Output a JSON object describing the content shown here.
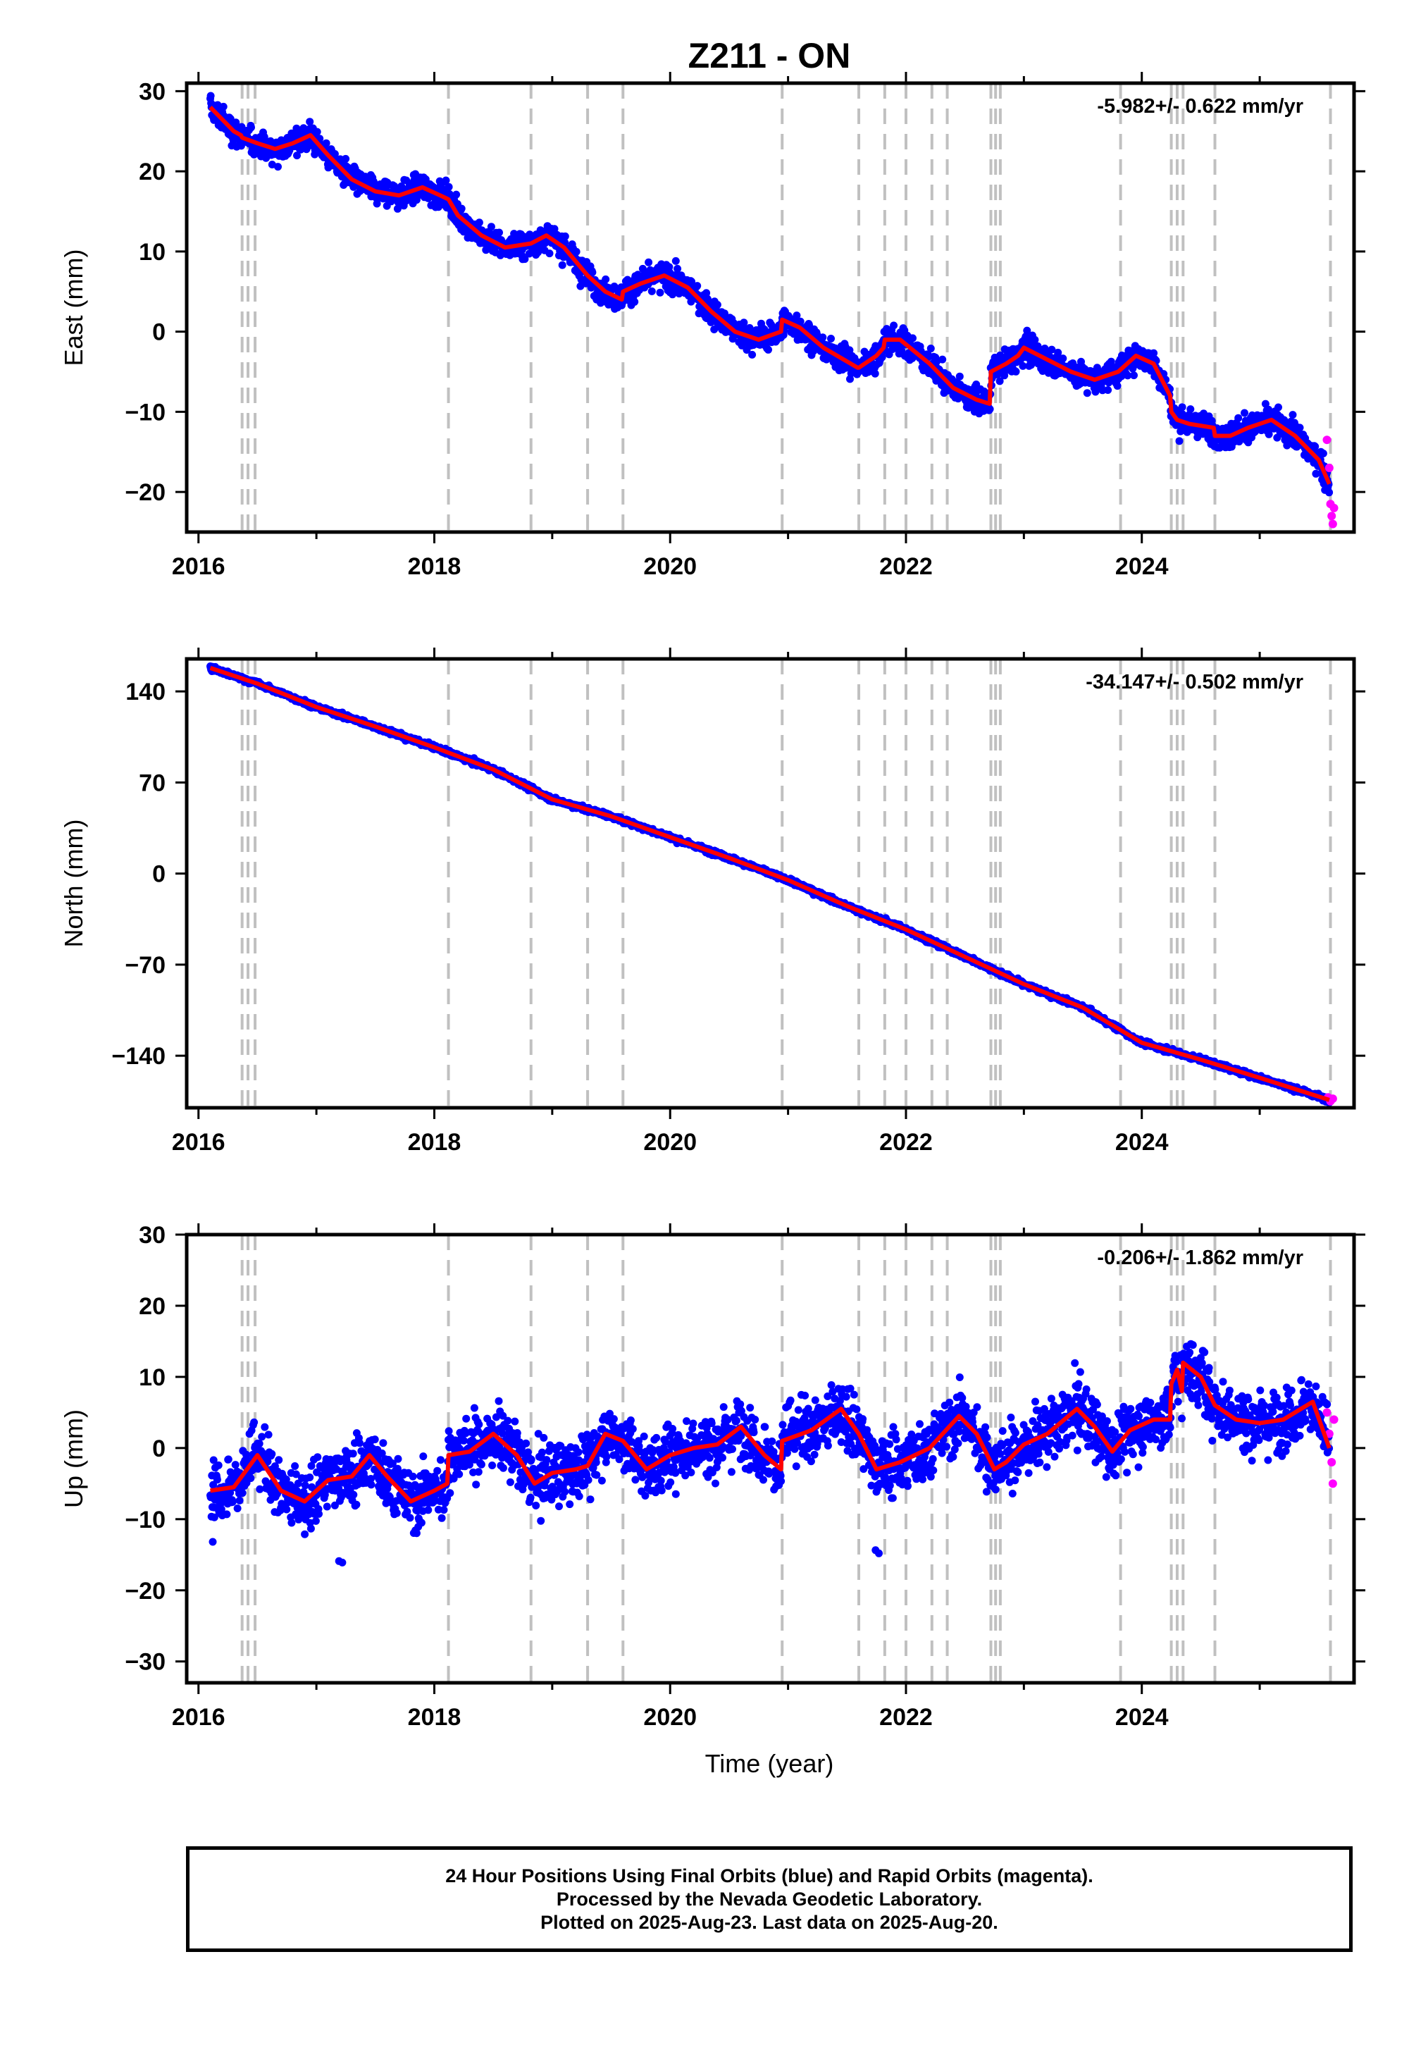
{
  "title": "Z211 - ON",
  "xlabel": "Time (year)",
  "footer": {
    "line1": "24 Hour Positions Using Final Orbits (blue) and Rapid Orbits (magenta).",
    "line2": "Processed by the Nevada Geodetic Laboratory.",
    "line3": "Plotted on 2025-Aug-23. Last data on 2025-Aug-20."
  },
  "colors": {
    "final": "#0000ff",
    "rapid": "#ff00ff",
    "model": "#ff0000",
    "steps": "#c0c0c0"
  },
  "chart_data": [
    {
      "type": "scatter",
      "ylabel": "East (mm)",
      "rate": "-5.982+/- 0.622 mm/yr",
      "xlim": [
        2015.9,
        2025.8
      ],
      "ylim": [
        -25,
        31
      ],
      "xticks": [
        2016,
        2018,
        2020,
        2022,
        2024
      ],
      "yticks": [
        -20,
        -10,
        0,
        10,
        20,
        30
      ],
      "grid": false,
      "step_epochs": [
        2016.37,
        2016.42,
        2016.48,
        2018.12,
        2018.82,
        2019.3,
        2019.6,
        2020.95,
        2021.6,
        2021.82,
        2022.0,
        2022.22,
        2022.35,
        2022.72,
        2022.76,
        2022.8,
        2023.82,
        2024.25,
        2024.3,
        2024.35,
        2024.62,
        2025.6
      ],
      "model": {
        "x": [
          2016.1,
          2016.2,
          2016.3,
          2016.36,
          2016.37,
          2016.5,
          2016.65,
          2016.8,
          2016.95,
          2017.1,
          2017.3,
          2017.5,
          2017.7,
          2017.9,
          2018.05,
          2018.12,
          2018.2,
          2018.4,
          2018.6,
          2018.82,
          2018.95,
          2019.1,
          2019.3,
          2019.45,
          2019.59,
          2019.6,
          2019.75,
          2019.95,
          2020.15,
          2020.35,
          2020.55,
          2020.75,
          2020.94,
          2020.95,
          2021.1,
          2021.3,
          2021.59,
          2021.6,
          2021.75,
          2021.81,
          2021.82,
          2021.95,
          2022.2,
          2022.4,
          2022.6,
          2022.71,
          2022.72,
          2022.85,
          2022.95,
          2023.0,
          2023.2,
          2023.4,
          2023.6,
          2023.8,
          2023.95,
          2024.1,
          2024.24,
          2024.25,
          2024.3,
          2024.4,
          2024.61,
          2024.62,
          2024.75,
          2024.9,
          2025.1,
          2025.3,
          2025.5,
          2025.59
        ],
        "y": [
          28,
          26.5,
          25,
          24.5,
          24.2,
          23.5,
          22.8,
          23.5,
          24.5,
          22,
          19,
          17.5,
          17,
          18,
          17,
          16.5,
          14.5,
          12,
          10.5,
          11,
          12,
          10.5,
          7,
          5,
          4,
          5,
          6,
          7,
          5.5,
          2.5,
          0,
          -1,
          0,
          1.5,
          0.5,
          -2,
          -4.5,
          -4.5,
          -3,
          -2,
          -1,
          -1,
          -4,
          -7,
          -8.5,
          -9,
          -5,
          -4,
          -3,
          -2,
          -3.5,
          -5,
          -6,
          -5,
          -3,
          -4,
          -8,
          -10,
          -11,
          -11.5,
          -12,
          -13,
          -13,
          -12,
          -11,
          -13,
          -16,
          -19
        ]
      },
      "rapid_points": {
        "x": [
          2025.57,
          2025.59,
          2025.6,
          2025.61,
          2025.62,
          2025.63
        ],
        "y": [
          -13.5,
          -17,
          -21.5,
          -23,
          -24,
          -22
        ]
      }
    },
    {
      "type": "scatter",
      "ylabel": "North (mm)",
      "rate": "-34.147+/- 0.502 mm/yr",
      "xlim": [
        2015.9,
        2025.8
      ],
      "ylim": [
        -180,
        165
      ],
      "xticks": [
        2016,
        2018,
        2020,
        2022,
        2024
      ],
      "yticks": [
        -140,
        -70,
        0,
        70,
        140
      ],
      "grid": false,
      "step_epochs": [
        2016.37,
        2016.42,
        2016.48,
        2018.12,
        2018.82,
        2019.3,
        2019.6,
        2020.95,
        2021.6,
        2021.82,
        2022.0,
        2022.22,
        2022.35,
        2022.72,
        2022.76,
        2022.8,
        2023.82,
        2024.25,
        2024.3,
        2024.35,
        2024.62,
        2025.6
      ],
      "model": {
        "x": [
          2016.1,
          2016.5,
          2017,
          2017.5,
          2018,
          2018.5,
          2019,
          2019.5,
          2020,
          2020.5,
          2021,
          2021.5,
          2022,
          2022.5,
          2023,
          2023.5,
          2024,
          2024.5,
          2025,
          2025.59
        ],
        "y": [
          158,
          146,
          128,
          113,
          97,
          80,
          57,
          44,
          28,
          12,
          -5,
          -25,
          -43,
          -64,
          -85,
          -103,
          -130,
          -143,
          -157,
          -174
        ]
      },
      "rapid_points": {
        "x": [
          2025.58,
          2025.6,
          2025.62
        ],
        "y": [
          -172,
          -175,
          -173
        ]
      }
    },
    {
      "type": "scatter",
      "ylabel": "Up (mm)",
      "rate": "-0.206+/- 1.862 mm/yr",
      "xlim": [
        2015.9,
        2025.8
      ],
      "ylim": [
        -33,
        30
      ],
      "xticks": [
        2016,
        2018,
        2020,
        2022,
        2024
      ],
      "yticks": [
        -30,
        -20,
        -10,
        0,
        10,
        20,
        30
      ],
      "grid": false,
      "step_epochs": [
        2016.37,
        2016.42,
        2016.48,
        2018.12,
        2018.82,
        2019.3,
        2019.6,
        2020.95,
        2021.6,
        2021.82,
        2022.0,
        2022.22,
        2022.35,
        2022.72,
        2022.76,
        2022.8,
        2023.82,
        2024.25,
        2024.3,
        2024.35,
        2024.62,
        2025.6
      ],
      "model": {
        "x": [
          2016.1,
          2016.3,
          2016.5,
          2016.7,
          2016.9,
          2017.1,
          2017.3,
          2017.45,
          2017.6,
          2017.8,
          2018.0,
          2018.11,
          2018.12,
          2018.3,
          2018.5,
          2018.7,
          2018.85,
          2019.0,
          2019.2,
          2019.3,
          2019.45,
          2019.6,
          2019.8,
          2020.0,
          2020.2,
          2020.4,
          2020.6,
          2020.8,
          2020.94,
          2020.95,
          2021.2,
          2021.45,
          2021.6,
          2021.75,
          2021.95,
          2022.2,
          2022.45,
          2022.6,
          2022.75,
          2022.85,
          2023.0,
          2023.2,
          2023.45,
          2023.6,
          2023.75,
          2023.9,
          2024.1,
          2024.24,
          2024.25,
          2024.3,
          2024.34,
          2024.35,
          2024.5,
          2024.62,
          2024.8,
          2025.0,
          2025.2,
          2025.45,
          2025.59
        ],
        "y": [
          -6,
          -5.5,
          -1,
          -6,
          -7.5,
          -4.5,
          -4,
          -1,
          -4,
          -7.5,
          -6,
          -5,
          -1,
          -0.5,
          2,
          -1,
          -5,
          -3.5,
          -3,
          -2.5,
          2,
          1,
          -3,
          -1,
          0,
          0.5,
          3,
          -1,
          -3,
          1,
          2.5,
          5.5,
          2,
          -3,
          -2,
          0,
          4.5,
          2,
          -3,
          -2,
          0.5,
          2,
          5.5,
          3,
          -0.5,
          2.5,
          4,
          4,
          9,
          11,
          8,
          12,
          10,
          6,
          4,
          3.5,
          4,
          6.5,
          0
        ]
      },
      "rapid_points": {
        "x": [
          2025.57,
          2025.59,
          2025.61,
          2025.62,
          2025.63
        ],
        "y": [
          5,
          2,
          -2,
          -5,
          4
        ]
      }
    }
  ]
}
